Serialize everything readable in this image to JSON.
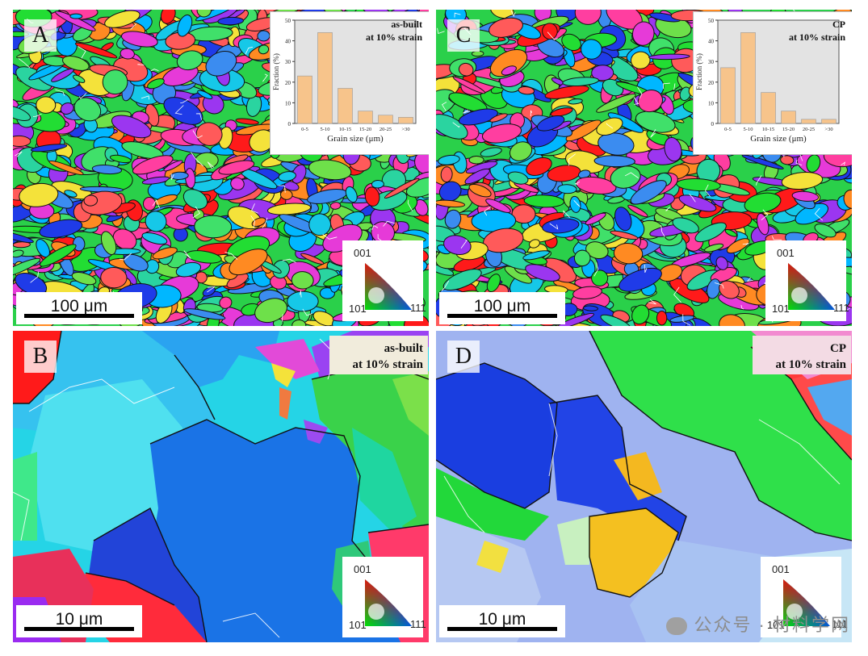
{
  "panels": {
    "A": {
      "label": "A",
      "scale_bar": "100 μm",
      "inset_title_1": "as-built",
      "inset_title_2": "at 10% strain"
    },
    "B": {
      "label": "B",
      "scale_bar": "10 μm",
      "strain_text_1": "as-built",
      "strain_text_2": "at 10% strain"
    },
    "C": {
      "label": "C",
      "scale_bar": "100 μm",
      "inset_title_1": "CP",
      "inset_title_2": "at 10% strain"
    },
    "D": {
      "label": "D",
      "scale_bar": "10 μm",
      "strain_text_1": "CP",
      "strain_text_2": "at 10% strain"
    }
  },
  "ipf_key": {
    "top": "001",
    "bottom_left": "101",
    "bottom_right": "111"
  },
  "chart_data": [
    {
      "type": "bar",
      "panel": "A",
      "title": "as-built at 10% strain",
      "xlabel": "Grain size (μm)",
      "ylabel": "Fraction (%)",
      "categories": [
        "0-5",
        "5-10",
        "10-15",
        "15-20",
        "20-25",
        ">30"
      ],
      "values": [
        23,
        44,
        17,
        6,
        4,
        3
      ],
      "ylim": [
        0,
        50
      ],
      "yticks": [
        0,
        10,
        20,
        30,
        40,
        50
      ],
      "bar_color": "#f7c48b",
      "background": "#e3e3e3"
    },
    {
      "type": "bar",
      "panel": "C",
      "title": "CP at 10% strain",
      "xlabel": "Grain size (μm)",
      "ylabel": "Fraction (%)",
      "categories": [
        "0-5",
        "5-10",
        "10-15",
        "15-20",
        "20-25",
        ">30"
      ],
      "values": [
        27,
        44,
        15,
        6,
        2,
        2
      ],
      "ylim": [
        0,
        50
      ],
      "yticks": [
        0,
        10,
        20,
        30,
        40,
        50
      ],
      "bar_color": "#f7c48b",
      "background": "#e3e3e3"
    }
  ],
  "watermark": {
    "text": "公众号 · 材料学网",
    "icon": "wechat-icon"
  }
}
